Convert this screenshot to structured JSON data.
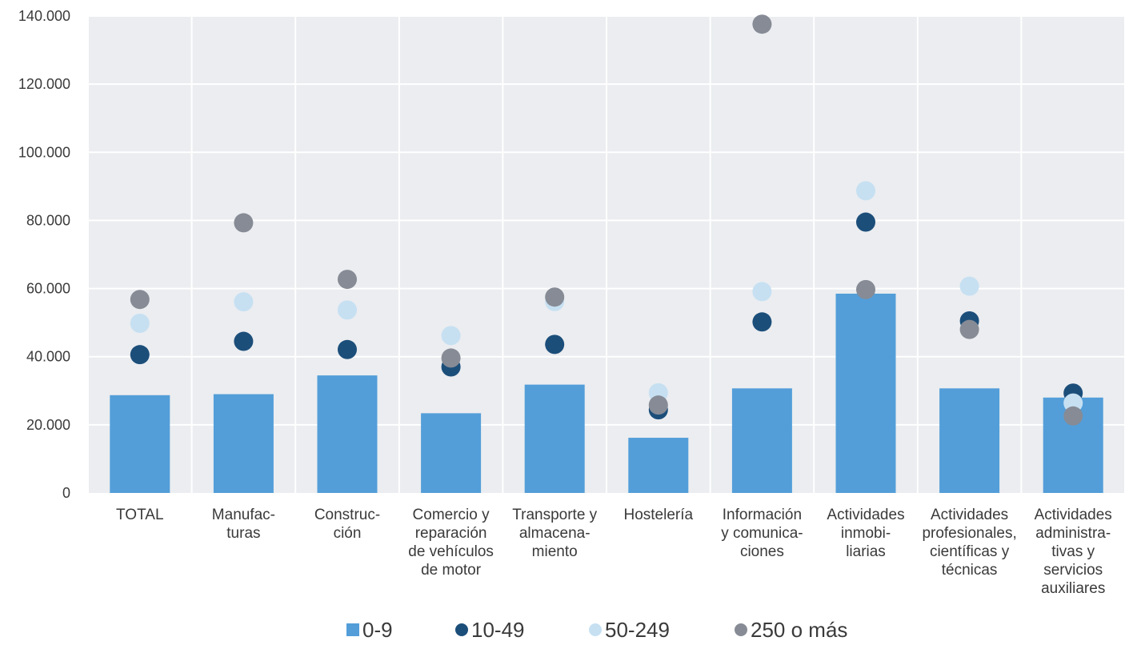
{
  "chart_data": {
    "type": "bar",
    "categories": [
      [
        "TOTAL"
      ],
      [
        "Manufac-",
        "turas"
      ],
      [
        "Construc-",
        "ción"
      ],
      [
        "Comercio y",
        "reparación",
        "de vehículos",
        "de motor"
      ],
      [
        "Transporte y",
        "almacena-",
        "miento"
      ],
      [
        "Hostelería"
      ],
      [
        "Información",
        "y comunica-",
        "ciones"
      ],
      [
        "Actividades",
        "inmobi-",
        "liarias"
      ],
      [
        "Actividades",
        "profesionales,",
        "científicas y",
        "técnicas"
      ],
      [
        "Actividades",
        "administra-",
        "tivas y",
        "servicios",
        "auxiliares"
      ]
    ],
    "series": [
      {
        "name": "0-9",
        "kind": "bar",
        "color": "#539ed9",
        "values": [
          28700,
          29000,
          34500,
          23400,
          31800,
          16200,
          30700,
          58500,
          30700,
          28000
        ]
      },
      {
        "name": "10-49",
        "kind": "dot",
        "color": "#1c4e7a",
        "values": [
          40600,
          44500,
          42100,
          37000,
          43600,
          24400,
          50200,
          79500,
          50500,
          29300
        ]
      },
      {
        "name": "50-249",
        "kind": "dot",
        "color": "#c6e0f2",
        "values": [
          49800,
          56100,
          53700,
          46200,
          56200,
          29400,
          59100,
          88700,
          60700,
          26400
        ]
      },
      {
        "name": "250 o más",
        "kind": "dot",
        "color": "#868b95",
        "values": [
          56800,
          79300,
          62700,
          39600,
          57500,
          25800,
          137600,
          59700,
          48000,
          22600
        ]
      }
    ],
    "y_ticks": [
      "0",
      "20.000",
      "40.000",
      "60.000",
      "80.000",
      "100.000",
      "120.000",
      "140.000"
    ],
    "ylim": [
      0,
      140000
    ],
    "grid": true,
    "legend": "bottom",
    "plot_background": "#ebedf0"
  }
}
